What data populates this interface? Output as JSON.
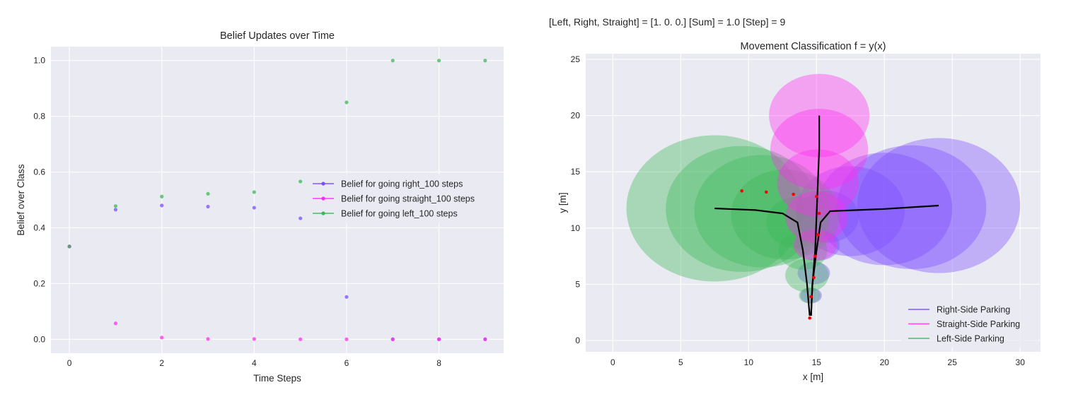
{
  "status_line": {
    "text": "[Left, Right, Straight] = [1. 0. 0.]   [Sum] = 1.0   [Step] = 9"
  },
  "colors": {
    "plot_background": "#eaeaf2",
    "right": "#7b4dff",
    "straight": "#ff2dee",
    "left": "#3cb85a",
    "path": "#000000",
    "observation": "#ff0000"
  },
  "chart_data": [
    {
      "type": "scatter",
      "title": "Belief Updates over Time",
      "xlabel": "Time Steps",
      "ylabel": "Belief over Class",
      "xlim": [
        -0.4,
        9.4
      ],
      "ylim": [
        -0.05,
        1.05
      ],
      "xticks": [
        0,
        2,
        4,
        6,
        8
      ],
      "yticks": [
        0.0,
        0.2,
        0.4,
        0.6,
        0.8,
        1.0
      ],
      "grid": true,
      "legend_position": "center-right",
      "x": [
        0,
        1,
        2,
        3,
        4,
        5,
        6,
        7,
        8,
        9
      ],
      "series": [
        {
          "name": "Belief for going right_100 steps",
          "color": "#7b4dff",
          "values": [
            0.333,
            0.465,
            0.48,
            0.476,
            0.472,
            0.434,
            0.152,
            0.0,
            0.0,
            0.0
          ]
        },
        {
          "name": "Belief for going straight_100 steps",
          "color": "#ff2dee",
          "values": [
            0.333,
            0.057,
            0.006,
            0.001,
            0.001,
            0.0,
            0.0,
            0.0,
            0.0,
            0.0
          ]
        },
        {
          "name": "Belief for going left_100 steps",
          "color": "#3cb85a",
          "values": [
            0.333,
            0.478,
            0.512,
            0.522,
            0.528,
            0.566,
            0.85,
            1.0,
            1.0,
            1.0
          ]
        }
      ]
    },
    {
      "type": "scatter",
      "title": "Movement Classification f = y(x)",
      "xlabel": "x [m]",
      "ylabel": "y [m]",
      "xlim": [
        -2.0,
        31.5
      ],
      "ylim": [
        -1.0,
        25.5
      ],
      "xticks": [
        0,
        5,
        10,
        15,
        20,
        25,
        30
      ],
      "yticks": [
        0,
        5,
        10,
        15,
        20,
        25
      ],
      "grid": true,
      "legend_position": "lower-right",
      "series": [
        {
          "name": "Right-Side Parking",
          "color": "#7b4dff",
          "path": [
            [
              14.6,
              2.2
            ],
            [
              14.7,
              5.0
            ],
            [
              15.0,
              8.0
            ],
            [
              15.3,
              10.5
            ],
            [
              16.0,
              11.5
            ],
            [
              18.0,
              11.6
            ],
            [
              20.0,
              11.7
            ],
            [
              22.0,
              11.85
            ],
            [
              24.0,
              12.0
            ]
          ],
          "uncertainty": [
            {
              "cx": 14.6,
              "cy": 4.0,
              "rx": 0.8,
              "ry": 0.7
            },
            {
              "cx": 14.8,
              "cy": 6.0,
              "rx": 1.2,
              "ry": 1.0
            },
            {
              "cx": 15.1,
              "cy": 8.5,
              "rx": 1.6,
              "ry": 1.4
            },
            {
              "cx": 15.8,
              "cy": 11.0,
              "rx": 2.3,
              "ry": 2.3
            },
            {
              "cx": 17.5,
              "cy": 11.5,
              "rx": 4.0,
              "ry": 4.0
            },
            {
              "cx": 20.0,
              "cy": 11.7,
              "rx": 5.0,
              "ry": 5.0
            },
            {
              "cx": 22.0,
              "cy": 11.85,
              "rx": 5.5,
              "ry": 5.5
            },
            {
              "cx": 24.0,
              "cy": 12.0,
              "rx": 6.0,
              "ry": 6.0
            }
          ]
        },
        {
          "name": "Straight-Side Parking",
          "color": "#ff2dee",
          "path": [
            [
              14.6,
              2.2
            ],
            [
              14.7,
              5.0
            ],
            [
              14.9,
              8.0
            ],
            [
              15.0,
              11.0
            ],
            [
              15.1,
              14.0
            ],
            [
              15.2,
              17.0
            ],
            [
              15.2,
              20.0
            ]
          ],
          "uncertainty": [
            {
              "cx": 14.9,
              "cy": 8.5,
              "rx": 1.6,
              "ry": 1.4
            },
            {
              "cx": 15.0,
              "cy": 11.0,
              "rx": 2.3,
              "ry": 2.3
            },
            {
              "cx": 15.1,
              "cy": 14.0,
              "rx": 3.0,
              "ry": 3.0
            },
            {
              "cx": 15.2,
              "cy": 17.0,
              "rx": 3.6,
              "ry": 3.6
            },
            {
              "cx": 15.2,
              "cy": 20.0,
              "rx": 3.7,
              "ry": 3.7
            }
          ]
        },
        {
          "name": "Left-Side Parking",
          "color": "#3cb85a",
          "path": [
            [
              14.5,
              2.2
            ],
            [
              14.3,
              5.0
            ],
            [
              14.0,
              8.0
            ],
            [
              13.6,
              10.5
            ],
            [
              12.5,
              11.3
            ],
            [
              10.5,
              11.6
            ],
            [
              8.5,
              11.7
            ],
            [
              7.5,
              11.75
            ]
          ],
          "uncertainty": [
            {
              "cx": 14.5,
              "cy": 4.0,
              "rx": 0.8,
              "ry": 0.7
            },
            {
              "cx": 14.3,
              "cy": 5.8,
              "rx": 1.6,
              "ry": 1.5
            },
            {
              "cx": 14.0,
              "cy": 8.0,
              "rx": 1.8,
              "ry": 1.7
            },
            {
              "cx": 13.6,
              "cy": 10.5,
              "rx": 2.3,
              "ry": 2.3
            },
            {
              "cx": 12.7,
              "cy": 11.2,
              "rx": 4.0,
              "ry": 4.0
            },
            {
              "cx": 11.0,
              "cy": 11.5,
              "rx": 5.0,
              "ry": 5.0
            },
            {
              "cx": 9.5,
              "cy": 11.7,
              "rx": 5.6,
              "ry": 5.6
            },
            {
              "cx": 7.5,
              "cy": 11.75,
              "rx": 6.5,
              "ry": 6.5
            }
          ]
        }
      ],
      "observations": {
        "color": "#ff0000",
        "points": [
          [
            14.5,
            2.0
          ],
          [
            14.6,
            3.9
          ],
          [
            14.8,
            5.6
          ],
          [
            14.9,
            7.5
          ],
          [
            15.1,
            9.4
          ],
          [
            15.2,
            11.3
          ],
          [
            15.0,
            12.8
          ],
          [
            13.3,
            13.0
          ],
          [
            11.3,
            13.2
          ],
          [
            9.5,
            13.3
          ]
        ]
      }
    }
  ]
}
